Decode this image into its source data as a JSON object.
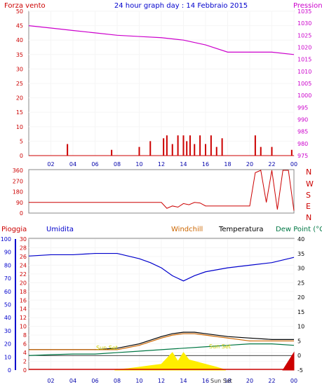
{
  "header": {
    "left_label": "Forza vento",
    "title": "24 hour graph day : 14 Febbraio 2015",
    "right_label": "Pressione"
  },
  "panel_wind_dir": {
    "right_labels": [
      "N",
      "W",
      "S",
      "E",
      "N"
    ]
  },
  "panel_bottom": {
    "labels": {
      "pioggia": "Pioggia",
      "umidita": "Umidita",
      "windchill": "Windchill",
      "temperatura": "Temperatura",
      "dewpoint": "Dew Point (°C"
    },
    "annotations": [
      "Sun Set",
      "Sun Set",
      "Sun Set"
    ]
  },
  "colors": {
    "axis_red": "#cc0000",
    "pressure": "#cc00cc",
    "humidity_blue": "#0000cc",
    "windchill": "#cc6600",
    "temperature": "#000000",
    "dewpoint": "#007744",
    "sun": "#ffee00",
    "grid": "#f5f5f5"
  },
  "chart_data": [
    {
      "type": "line",
      "x_ticks": [
        "02",
        "04",
        "06",
        "08",
        "10",
        "12",
        "14",
        "16",
        "18",
        "20",
        "22",
        "00"
      ],
      "y_left": {
        "label": "Forza vento",
        "ticks": [
          0,
          5,
          10,
          15,
          20,
          25,
          30,
          35,
          40,
          45,
          50
        ],
        "range": [
          0,
          50
        ]
      },
      "y_right": {
        "label": "Pressione",
        "ticks": [
          975,
          980,
          985,
          990,
          995,
          1000,
          1005,
          1010,
          1015,
          1020,
          1025,
          1030,
          1035
        ],
        "range": [
          975,
          1035
        ]
      },
      "series": [
        {
          "name": "Pressione",
          "axis": "right",
          "hours": [
            0,
            2,
            4,
            6,
            8,
            10,
            12,
            14,
            16,
            18,
            20,
            22,
            24
          ],
          "values": [
            1029,
            1028,
            1027,
            1026,
            1025,
            1024.5,
            1024,
            1023,
            1021,
            1018,
            1018,
            1018,
            1017
          ]
        },
        {
          "name": "Forza vento",
          "axis": "left",
          "style": "bars",
          "hours": [
            3.5,
            7.5,
            10,
            11,
            12.2,
            12.5,
            13,
            13.5,
            14,
            14.3,
            14.6,
            15,
            15.5,
            16,
            16.5,
            17,
            17.5,
            20.5,
            21,
            22,
            23.8
          ],
          "values": [
            4,
            2,
            3,
            5,
            6,
            7,
            4,
            7,
            7,
            5,
            7,
            4,
            7,
            4,
            7,
            3,
            6,
            7,
            3,
            3,
            2
          ]
        }
      ]
    },
    {
      "type": "line",
      "y_left": {
        "ticks": [
          0,
          90,
          180,
          270,
          360
        ],
        "range": [
          0,
          360
        ]
      },
      "series": [
        {
          "name": "Direzione vento",
          "hours": [
            0,
            12,
            12.5,
            13,
            13.5,
            14,
            14.5,
            15,
            15.5,
            16,
            20,
            20.5,
            21,
            21.5,
            22,
            22.5,
            23,
            23.5,
            24
          ],
          "values": [
            90,
            90,
            40,
            60,
            50,
            80,
            70,
            90,
            85,
            60,
            60,
            340,
            360,
            90,
            360,
            30,
            360,
            360,
            20
          ]
        }
      ]
    },
    {
      "type": "line",
      "x_ticks": [
        "02",
        "04",
        "06",
        "08",
        "10",
        "12",
        "14",
        "16",
        "18",
        "20",
        "22",
        "00"
      ],
      "y_left_outer": {
        "label": "Umidita",
        "ticks": [
          0,
          10,
          20,
          30,
          40,
          50,
          60,
          70,
          80,
          90,
          100
        ],
        "range": [
          0,
          100
        ]
      },
      "y_left_inner": {
        "label": "Pioggia",
        "ticks": [
          0,
          2,
          4,
          6,
          8,
          10,
          12,
          14,
          16,
          18,
          20,
          22,
          24,
          26,
          28,
          30
        ],
        "range": [
          0,
          30
        ]
      },
      "y_right": {
        "label": "Temperatura",
        "ticks": [
          -5,
          0,
          5,
          10,
          15,
          20,
          25,
          30,
          35,
          40
        ],
        "range": [
          -5,
          40
        ]
      },
      "series": [
        {
          "name": "Umidita",
          "axis": "outer",
          "hours": [
            0,
            2,
            4,
            6,
            8,
            10,
            11,
            12,
            13,
            14,
            15,
            16,
            18,
            20,
            22,
            24
          ],
          "values": [
            87,
            88,
            88,
            89,
            89,
            85,
            82,
            78,
            72,
            68,
            72,
            75,
            78,
            80,
            82,
            86
          ]
        },
        {
          "name": "Temperatura",
          "axis": "right",
          "hours": [
            0,
            2,
            4,
            6,
            8,
            10,
            12,
            13,
            14,
            15,
            16,
            18,
            20,
            22,
            24
          ],
          "values": [
            2,
            2,
            2,
            2,
            2.5,
            4,
            6.5,
            7.5,
            8,
            8,
            7.5,
            6.5,
            6,
            5.5,
            5.5
          ]
        },
        {
          "name": "Windchill",
          "axis": "right",
          "hours": [
            0,
            2,
            4,
            6,
            8,
            10,
            12,
            13,
            14,
            15,
            16,
            18,
            20,
            22,
            24
          ],
          "values": [
            2,
            2,
            2,
            2,
            2,
            3.5,
            6,
            7,
            7.5,
            7.5,
            7,
            6,
            5,
            5,
            5
          ]
        },
        {
          "name": "Dew Point (°C",
          "axis": "right",
          "hours": [
            0,
            2,
            4,
            6,
            8,
            10,
            12,
            14,
            16,
            18,
            20,
            22,
            24
          ],
          "values": [
            0,
            0.3,
            0.5,
            0.5,
            1,
            1.5,
            2,
            2.5,
            3,
            3.5,
            4,
            4,
            3.5
          ]
        },
        {
          "name": "Sun",
          "axis": "right",
          "style": "area",
          "hours": [
            7.8,
            9,
            10,
            11,
            12,
            13,
            13.5,
            14,
            14.5,
            15,
            16,
            17,
            17.8
          ],
          "values": [
            -4.9,
            -4.5,
            -4,
            -3.5,
            -3,
            1,
            -2,
            1,
            -1.5,
            -2,
            -3,
            -4,
            -4.9
          ]
        },
        {
          "name": "Pioggia",
          "axis": "inner",
          "style": "area",
          "hours": [
            23,
            23.5,
            24
          ],
          "values": [
            0,
            2,
            4
          ]
        }
      ]
    }
  ]
}
